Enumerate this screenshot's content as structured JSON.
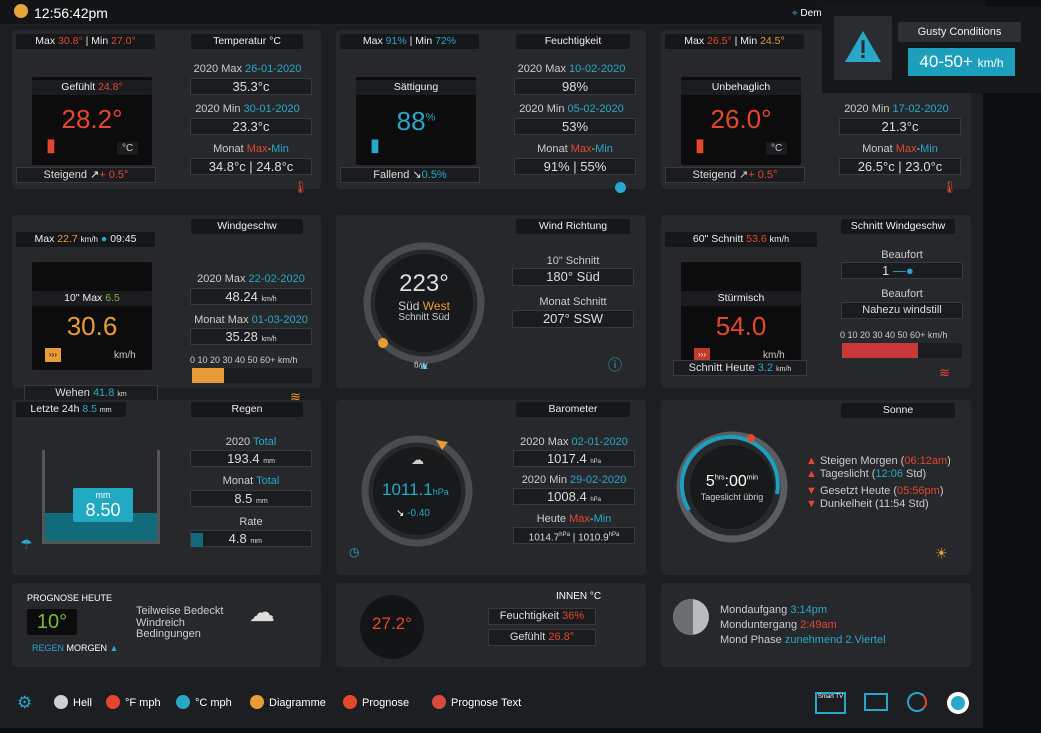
{
  "top": {
    "time": "12:56:42pm",
    "location": "Dem"
  },
  "alert": {
    "title": "Gusty Conditions",
    "value": "40-50+",
    "unit": "km/h"
  },
  "temp": {
    "max_label": "Max",
    "max": "30.8°",
    "min_label": "Min",
    "min": "27.0°",
    "title": "Temperatur °C",
    "feels_label": "Gefühlt",
    "feels": "24.8°",
    "value": "28.2°",
    "unit": "°C",
    "trend_label": "Steigend",
    "trend": "+ 0.5°",
    "y_max_label": "2020 Max",
    "y_max_date": "26-01-2020",
    "y_max": "35.3°c",
    "y_min_label": "2020 Min",
    "y_min_date": "30-01-2020",
    "y_min": "23.3°c",
    "month_label": "Monat",
    "month_max": "Max",
    "month_min": "Min",
    "month_val": "34.8°c | 24.8°c"
  },
  "hum": {
    "max": "91%",
    "min": "72%",
    "title": "Feuchtigkeit",
    "inner_label": "Sättigung",
    "value": "88",
    "unit": "%",
    "trend_label": "Fallend",
    "trend": "0.5%",
    "y_max_label": "2020 Max",
    "y_max_date": "10-02-2020",
    "y_max": "98%",
    "y_min_label": "2020 Min",
    "y_min_date": "05-02-2020",
    "y_min": "53%",
    "month_val": "91% | 55%"
  },
  "itemp": {
    "max": "26.5°",
    "min": "24.5°",
    "inner_label": "Unbehaglich",
    "value": "26.0°",
    "unit": "°C",
    "trend_label": "Steigend",
    "trend": "+ 0.5°",
    "y_min_label": "2020 Min",
    "y_min_date": "17-02-2020",
    "y_min": "21.3°c",
    "month_val": "26.5°c | 23.0°c"
  },
  "wind": {
    "max_label": "Max",
    "max": "22.7",
    "max_unit": "km/h",
    "time": "09:45",
    "title": "Windgeschw",
    "inner_label": "10\" Max",
    "inner_val": "6.5",
    "value": "30.6",
    "unit": "km/h",
    "gust_label": "Wehen",
    "gust": "41.8",
    "gust_unit": "km",
    "y_max_label": "2020 Max",
    "y_max_date": "22-02-2020",
    "y_max": "48.24",
    "y_unit": "km/h",
    "month_label": "Monat Max",
    "month_date": "01-03-2020",
    "month_val": "35.28",
    "scale": "0 10 20 30 40 50 60+ km/h",
    "level": 0.27
  },
  "dir": {
    "title": "Wind Richtung",
    "deg": "223°",
    "dir1": "Süd",
    "dir2": "West",
    "avg": "Schnitt Süd",
    "avg_mark": "Avg",
    "ten_label": "10\" Schnitt",
    "ten_val": "180°  Süd",
    "month_label": "Monat Schnitt",
    "month_val": "207°  SSW"
  },
  "avgwind": {
    "title": "Schnitt Windgeschw",
    "label": "60\" Schnitt",
    "val": "53.6",
    "unit": "km/h",
    "inner_label": "Stürmisch",
    "value": "54.0",
    "vunit": "km/h",
    "beaufort_label": "Beaufort",
    "beaufort": "1",
    "beaufort_text": "Nahezu windstill",
    "scale": "0 10 20 30 40 50 60+ km/h",
    "today_label": "Schnitt Heute",
    "today": "3.2",
    "today_unit": "km/h",
    "level": 0.9
  },
  "rain": {
    "last_label": "Letzte 24h",
    "last": "8.5",
    "last_unit": "mm",
    "title": "Regen",
    "gauge_unit": "mm",
    "gauge_val": "8.50",
    "total_label": "2020",
    "total_label2": "Total",
    "total": "193.4",
    "t_unit": "mm",
    "month_label": "Monat",
    "month_label2": "Total",
    "month": "8.5",
    "rate_label": "Rate",
    "rate": "4.8"
  },
  "baro": {
    "title": "Barometer",
    "value": "1011.1",
    "unit": "hPa",
    "trend": "-0.40",
    "y_max_label": "2020 Max",
    "y_max_date": "02-01-2020",
    "y_max": "1017.4",
    "y_min_label": "2020 Min",
    "y_min_date": "29-02-2020",
    "y_min": "1008.4",
    "p_unit": "hPa",
    "today_label": "Heute",
    "today_max": "Max",
    "today_min": "Min",
    "today_val1": "1014.7",
    "today_val2": "1010.9"
  },
  "sun": {
    "title": "Sonne",
    "hrs": "5",
    "hrs_unit": "hrs",
    "mins": "00",
    "min_unit": "min",
    "daylight_rem": "Tageslicht übrig",
    "rise_label": "Steigen Morgen",
    "rise": "06:12am",
    "day_label": "Tageslicht",
    "day": "12:06",
    "day_unit": "Std",
    "set_label": "Gesetzt Heute",
    "set": "05:56pm",
    "dark_label": "Dunkelheit",
    "dark": "(11:54 Std)"
  },
  "forecast": {
    "title": "PROGNOSE HEUTE",
    "temp": "10°",
    "desc1": "Teilweise Bedeckt",
    "desc2": "Windreich",
    "desc3": "Bedingungen",
    "rain": "REGEN",
    "tomorrow": "MORGEN"
  },
  "indoor": {
    "title": "INNEN °C",
    "value": "27.2°",
    "hum_label": "Feuchtigkeit",
    "hum": "36%",
    "feels_label": "Gefühlt",
    "feels": "26.8°"
  },
  "moon": {
    "rise_label": "Mondaufgang",
    "rise": "3:14pm",
    "set_label": "Monduntergang",
    "set": "2:49am",
    "phase_label": "Mond Phase",
    "phase": "zunehmend 2.Viertel"
  },
  "bottom": {
    "items": [
      {
        "label": "Hell",
        "color": "#cfd0d2"
      },
      {
        "label": "°F mph",
        "color": "#e4472e"
      },
      {
        "label": "°C mph",
        "color": "#29a7c9"
      },
      {
        "label": "Diagramme",
        "color": "#e89b36"
      },
      {
        "label": "Prognose",
        "color": "#e4472e"
      },
      {
        "label": "Prognose Text",
        "color": "#d84a40"
      }
    ],
    "tv_label": "Smart TV"
  }
}
